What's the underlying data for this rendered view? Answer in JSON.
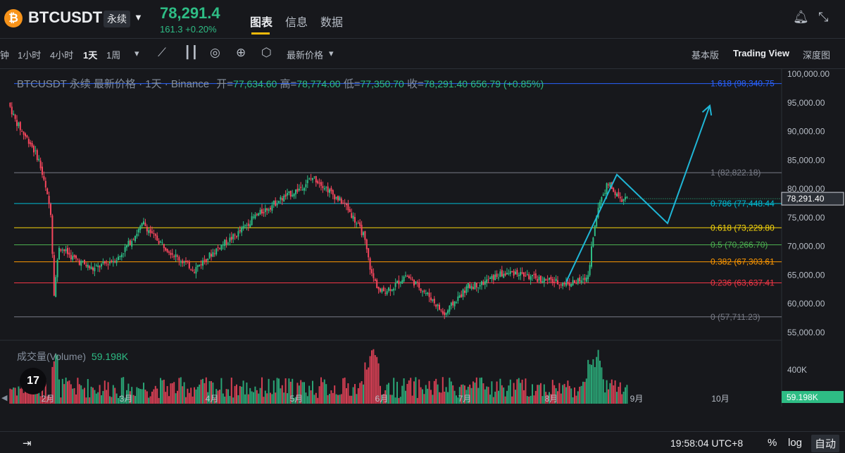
{
  "header": {
    "symbol": "BTCUSDT",
    "contract": "永续",
    "price": "78,291.4",
    "change": "161.3 +0.20%",
    "tabs": [
      "图表",
      "信息",
      "数据"
    ]
  },
  "toolbar": {
    "intervals": [
      "钟",
      "1小时",
      "4小时",
      "1天",
      "1周"
    ],
    "active_interval": "1天",
    "price_type": "最新价格",
    "views": [
      "基本版",
      "Trading View",
      "深度图"
    ],
    "active_view": "Trading View"
  },
  "legend": {
    "title": "BTCUSDT 永续 最新价格 · 1天 · Binance",
    "open_label": "开=",
    "open": "77,634.60",
    "high_label": "高=",
    "high": "78,774.00",
    "low_label": "低=",
    "low": "77,350.70",
    "close_label": "收=",
    "close": "78,291.40",
    "change": "656.79 (+0.85%)"
  },
  "volume_legend": {
    "label": "成交量(Volume)",
    "value": "59.198K"
  },
  "tv_logo": "17",
  "bottom": {
    "time": "19:58:04 UTC+8",
    "percent": "%",
    "log": "log",
    "auto": "自动"
  },
  "colors": {
    "up": "#2ebd85",
    "down": "#f6465d",
    "projection": "#1fb6d6",
    "background": "#17181c"
  },
  "chart_data": {
    "type": "candlestick",
    "y_ticks": [
      "100,000.00",
      "95,000.00",
      "90,000.00",
      "85,000.00",
      "80,000.00",
      "75,000.00",
      "70,000.00",
      "65,000.00",
      "60,000.00",
      "55,000.00"
    ],
    "ylim": [
      54000,
      101000
    ],
    "x_ticks": [
      "2月",
      "3月",
      "4月",
      "5月",
      "6月",
      "7月",
      "8月",
      "9月",
      "10月"
    ],
    "current_price_label": "78,291.40",
    "fib_levels": [
      {
        "label": "1.618 (98,340.75",
        "value": 98340.75,
        "color": "#2962ff"
      },
      {
        "label": "1 (82,822.18)",
        "value": 82822.18,
        "color": "#787b86"
      },
      {
        "label": "0.786 (77,448.44",
        "value": 77448.44,
        "color": "#00bcd4"
      },
      {
        "label": "0.618 (73,229.80",
        "value": 73229.8,
        "color": "#f5d40b"
      },
      {
        "label": "0.5 (70,266.70)",
        "value": 70266.7,
        "color": "#4caf50"
      },
      {
        "label": "0.382 (67,303.61",
        "value": 67303.61,
        "color": "#ff9800"
      },
      {
        "label": "0.236 (63,637.41",
        "value": 63637.41,
        "color": "#f23645"
      },
      {
        "label": "0 (57,711.23)",
        "value": 57711.23,
        "color": "#787b86"
      }
    ],
    "volume_ticks": [
      "400K"
    ],
    "volume_current": "59.198K",
    "price_path": [
      [
        0,
        95000
      ],
      [
        4,
        92000
      ],
      [
        8,
        90000
      ],
      [
        13,
        88000
      ],
      [
        18,
        85000
      ],
      [
        22,
        80000
      ],
      [
        25,
        76000
      ],
      [
        27,
        62000
      ],
      [
        30,
        70000
      ],
      [
        38,
        68000
      ],
      [
        50,
        66000
      ],
      [
        65,
        68000
      ],
      [
        80,
        74000
      ],
      [
        85,
        72000
      ],
      [
        100,
        68000
      ],
      [
        110,
        66000
      ],
      [
        125,
        70000
      ],
      [
        135,
        72000
      ],
      [
        145,
        75000
      ],
      [
        160,
        78000
      ],
      [
        172,
        80000
      ],
      [
        180,
        82000
      ],
      [
        185,
        81000
      ],
      [
        192,
        79000
      ],
      [
        200,
        77000
      ],
      [
        210,
        72000
      ],
      [
        215,
        65000
      ],
      [
        220,
        62000
      ],
      [
        228,
        63000
      ],
      [
        235,
        65000
      ],
      [
        243,
        63000
      ],
      [
        250,
        61000
      ],
      [
        258,
        58000
      ],
      [
        263,
        60000
      ],
      [
        272,
        63000
      ],
      [
        280,
        63500
      ],
      [
        290,
        65000
      ],
      [
        300,
        65500
      ],
      [
        310,
        64500
      ],
      [
        320,
        64000
      ],
      [
        330,
        63500
      ],
      [
        340,
        64000
      ],
      [
        343,
        65000
      ],
      [
        346,
        72000
      ],
      [
        350,
        78000
      ],
      [
        355,
        81000
      ],
      [
        362,
        78000
      ],
      [
        366,
        78291
      ]
    ],
    "projection": [
      [
        330,
        63800
      ],
      [
        360,
        82500
      ],
      [
        390,
        74000
      ],
      [
        415,
        94500
      ]
    ]
  }
}
